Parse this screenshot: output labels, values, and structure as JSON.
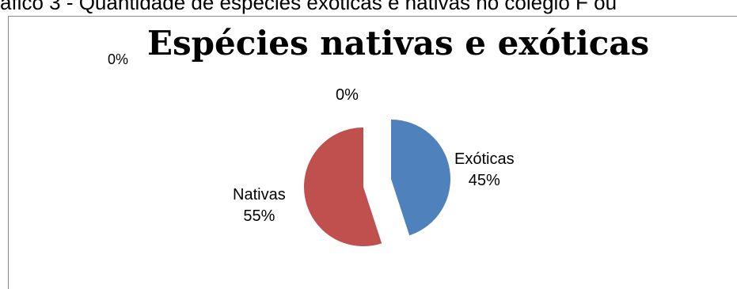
{
  "page": {
    "caption": "áfico 3 - Quantidade de espécies exóticas e nativas no colégio F ou"
  },
  "chart_data": {
    "type": "pie",
    "title": "Espécies nativas e exóticas",
    "stray_labels": [
      "0%",
      "0%"
    ],
    "slices": [
      {
        "name": "Exóticas",
        "value": 45,
        "percent_label": "45%",
        "color": "#4f81bd"
      },
      {
        "name": "Nativas",
        "value": 55,
        "percent_label": "55%",
        "color": "#c0504d"
      }
    ]
  }
}
